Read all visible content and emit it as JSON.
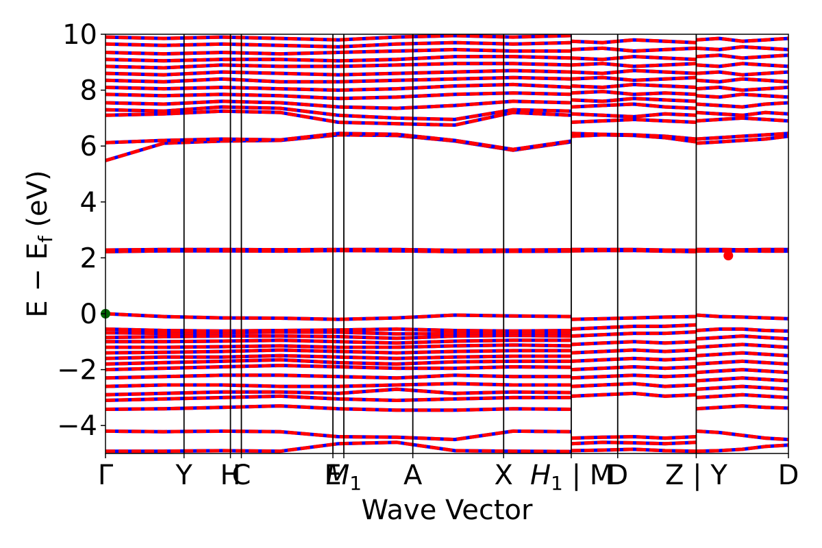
{
  "chart_data": {
    "type": "line",
    "title": "",
    "xlabel": "Wave Vector",
    "ylabel": "E − E",
    "ylabel_sub": "f",
    "ylabel_unit": "(eV)",
    "ylim": [
      -5,
      10
    ],
    "yticks": [
      -4,
      -2,
      0,
      2,
      4,
      6,
      8,
      10
    ],
    "ytick_labels": [
      "−4",
      "−2",
      "0",
      "2",
      "4",
      "6",
      "8",
      "10"
    ],
    "grid": false,
    "series_colors": {
      "spin_up": "#0000ff",
      "spin_down": "#ff0000",
      "vbm_marker": "#006400",
      "cbm_marker": "#ff0000"
    },
    "high_symmetry_points": [
      {
        "x": 0.0,
        "label": "Γ"
      },
      {
        "x": 0.115,
        "label": "Y"
      },
      {
        "x": 0.183,
        "label": "H"
      },
      {
        "x": 0.199,
        "label": "C"
      },
      {
        "x": 0.333,
        "label": "E"
      },
      {
        "x": 0.349,
        "label": "M",
        "sub": "1",
        "italic": true
      },
      {
        "x": 0.45,
        "label": "A"
      },
      {
        "x": 0.583,
        "label": "X"
      },
      {
        "x": 0.682,
        "label": "H",
        "sub": "1",
        "italic": true,
        "suffix": " | M"
      },
      {
        "x": 0.75,
        "label": "D"
      },
      {
        "x": 0.865,
        "label": "Z | Y"
      },
      {
        "x": 1.0,
        "label": "D"
      }
    ],
    "panels": [
      {
        "x0": 0.0,
        "x1": 0.682,
        "bands": [
          [
            -4.92,
            -4.92,
            -4.9,
            -4.92,
            -4.65,
            -4.6,
            -4.9,
            -4.92,
            -4.93
          ],
          [
            -4.2,
            -4.22,
            -4.2,
            -4.22,
            -4.4,
            -4.42,
            -4.5,
            -4.2,
            -4.22
          ],
          [
            -3.42,
            -3.4,
            -3.35,
            -3.3,
            -3.4,
            -3.45,
            -3.45,
            -3.4,
            -3.42
          ],
          [
            -3.1,
            -3.05,
            -3.0,
            -2.95,
            -3.05,
            -3.1,
            -3.05,
            -3.0,
            -3.0
          ],
          [
            -2.9,
            -2.85,
            -2.8,
            -2.8,
            -2.85,
            -2.7,
            -2.85,
            -2.8,
            -2.82
          ],
          [
            -2.6,
            -2.55,
            -2.55,
            -2.6,
            -2.6,
            -2.55,
            -2.5,
            -2.55,
            -2.55
          ],
          [
            -2.3,
            -2.25,
            -2.2,
            -2.2,
            -2.25,
            -2.3,
            -2.2,
            -2.25,
            -2.25
          ],
          [
            -2.0,
            -1.95,
            -1.9,
            -1.85,
            -1.9,
            -1.95,
            -1.95,
            -1.9,
            -1.92
          ],
          [
            -1.8,
            -1.75,
            -1.7,
            -1.65,
            -1.75,
            -1.8,
            -1.72,
            -1.7,
            -1.7
          ],
          [
            -1.6,
            -1.55,
            -1.55,
            -1.5,
            -1.55,
            -1.6,
            -1.55,
            -1.52,
            -1.52
          ],
          [
            -1.4,
            -1.38,
            -1.35,
            -1.3,
            -1.35,
            -1.4,
            -1.35,
            -1.32,
            -1.32
          ],
          [
            -1.2,
            -1.2,
            -1.18,
            -1.15,
            -1.2,
            -1.2,
            -1.15,
            -1.12,
            -1.15
          ],
          [
            -1.0,
            -1.0,
            -0.98,
            -0.95,
            -1.0,
            -1.05,
            -0.98,
            -0.95,
            -0.95
          ],
          [
            -0.85,
            -0.82,
            -0.8,
            -0.8,
            -0.82,
            -0.88,
            -0.8,
            -0.78,
            -0.8
          ],
          [
            -0.68,
            -0.7,
            -0.68,
            -0.66,
            -0.66,
            -0.72,
            -0.7,
            -0.68,
            -0.68
          ],
          [
            -0.55,
            -0.6,
            -0.62,
            -0.6,
            -0.58,
            -0.55,
            -0.6,
            -0.62,
            -0.6
          ],
          [
            0.0,
            -0.1,
            -0.15,
            -0.16,
            -0.2,
            -0.15,
            -0.05,
            -0.08,
            -0.1
          ],
          [
            2.22,
            2.25,
            2.25,
            2.24,
            2.26,
            2.25,
            2.22,
            2.23,
            2.24
          ],
          [
            2.28,
            2.3,
            2.3,
            2.29,
            2.3,
            2.3,
            2.27,
            2.28,
            2.29
          ],
          [
            5.48,
            6.1,
            6.18,
            6.2,
            6.4,
            6.38,
            6.18,
            5.85,
            6.15
          ],
          [
            6.12,
            6.2,
            6.25,
            6.22,
            6.45,
            6.42,
            6.2,
            5.88,
            6.18
          ],
          [
            7.1,
            7.15,
            7.25,
            7.2,
            6.85,
            6.8,
            6.75,
            7.2,
            7.1
          ],
          [
            7.3,
            7.25,
            7.4,
            7.35,
            7.1,
            7.0,
            6.95,
            7.3,
            7.25
          ],
          [
            7.55,
            7.5,
            7.6,
            7.55,
            7.4,
            7.35,
            7.45,
            7.6,
            7.55
          ],
          [
            7.85,
            7.8,
            7.85,
            7.8,
            7.7,
            7.75,
            7.85,
            7.9,
            7.85
          ],
          [
            8.1,
            8.05,
            8.1,
            8.05,
            8.0,
            8.05,
            8.15,
            8.2,
            8.1
          ],
          [
            8.35,
            8.3,
            8.4,
            8.3,
            8.3,
            8.35,
            8.4,
            8.45,
            8.4
          ],
          [
            8.6,
            8.55,
            8.65,
            8.6,
            8.55,
            8.6,
            8.65,
            8.7,
            8.65
          ],
          [
            8.85,
            8.8,
            8.9,
            8.85,
            8.85,
            8.9,
            8.95,
            8.95,
            8.9
          ],
          [
            9.1,
            9.05,
            9.1,
            9.1,
            9.05,
            9.1,
            9.2,
            9.2,
            9.15
          ],
          [
            9.35,
            9.3,
            9.35,
            9.3,
            9.35,
            9.4,
            9.45,
            9.4,
            9.4
          ],
          [
            9.65,
            9.6,
            9.65,
            9.6,
            9.55,
            9.65,
            9.7,
            9.65,
            9.7
          ],
          [
            9.9,
            9.85,
            9.9,
            9.85,
            9.8,
            9.9,
            9.95,
            9.9,
            9.95
          ]
        ]
      },
      {
        "x0": 0.682,
        "x1": 0.865,
        "bands": [
          [
            -4.9,
            -4.88,
            -4.85,
            -4.9,
            -4.92
          ],
          [
            -4.65,
            -4.6,
            -4.62,
            -4.65,
            -4.6
          ],
          [
            -4.45,
            -4.42,
            -4.4,
            -4.45,
            -4.4
          ],
          [
            -2.95,
            -2.9,
            -2.85,
            -2.95,
            -2.9
          ],
          [
            -2.6,
            -2.55,
            -2.5,
            -2.6,
            -2.55
          ],
          [
            -2.3,
            -2.25,
            -2.2,
            -2.25,
            -2.2
          ],
          [
            -2.0,
            -1.95,
            -1.9,
            -1.95,
            -1.9
          ],
          [
            -1.7,
            -1.65,
            -1.6,
            -1.65,
            -1.6
          ],
          [
            -1.4,
            -1.35,
            -1.3,
            -1.35,
            -1.3
          ],
          [
            -1.1,
            -1.05,
            -1.0,
            -1.05,
            -1.0
          ],
          [
            -0.8,
            -0.75,
            -0.7,
            -0.7,
            -0.65
          ],
          [
            -0.55,
            -0.5,
            -0.45,
            -0.45,
            -0.4
          ],
          [
            -0.2,
            -0.18,
            -0.15,
            -0.12,
            -0.1
          ],
          [
            2.25,
            2.26,
            2.26,
            2.24,
            2.22
          ],
          [
            2.3,
            2.3,
            2.3,
            2.28,
            2.27
          ],
          [
            6.35,
            6.4,
            6.38,
            6.3,
            6.15
          ],
          [
            6.45,
            6.42,
            6.4,
            6.35,
            6.25
          ],
          [
            6.85,
            6.9,
            6.95,
            6.9,
            6.85
          ],
          [
            7.15,
            7.1,
            7.05,
            7.15,
            7.1
          ],
          [
            7.4,
            7.45,
            7.5,
            7.4,
            7.35
          ],
          [
            7.65,
            7.6,
            7.7,
            7.65,
            7.6
          ],
          [
            7.9,
            7.95,
            7.85,
            7.9,
            7.85
          ],
          [
            8.15,
            8.1,
            8.2,
            8.15,
            8.1
          ],
          [
            8.4,
            8.45,
            8.35,
            8.4,
            8.45
          ],
          [
            8.65,
            8.6,
            8.7,
            8.65,
            8.6
          ],
          [
            8.9,
            8.95,
            8.85,
            8.9,
            8.95
          ],
          [
            9.15,
            9.1,
            9.2,
            9.15,
            9.1
          ],
          [
            9.45,
            9.5,
            9.4,
            9.45,
            9.5
          ],
          [
            9.75,
            9.7,
            9.8,
            9.75,
            9.7
          ]
        ]
      },
      {
        "x0": 0.865,
        "x1": 1.0,
        "bands": [
          [
            -4.92,
            -4.9,
            -4.85,
            -4.75,
            -4.7
          ],
          [
            -4.2,
            -4.25,
            -4.35,
            -4.45,
            -4.5
          ],
          [
            -3.4,
            -3.35,
            -3.3,
            -3.35,
            -3.38
          ],
          [
            -3.0,
            -2.95,
            -2.9,
            -2.95,
            -3.0
          ],
          [
            -2.7,
            -2.65,
            -2.6,
            -2.65,
            -2.7
          ],
          [
            -2.4,
            -2.35,
            -2.3,
            -2.35,
            -2.4
          ],
          [
            -2.1,
            -2.05,
            -2.0,
            -2.05,
            -2.1
          ],
          [
            -1.8,
            -1.75,
            -1.7,
            -1.75,
            -1.8
          ],
          [
            -1.5,
            -1.45,
            -1.4,
            -1.45,
            -1.5
          ],
          [
            -1.2,
            -1.15,
            -1.1,
            -1.15,
            -1.2
          ],
          [
            -0.9,
            -0.85,
            -0.8,
            -0.85,
            -0.9
          ],
          [
            -0.6,
            -0.55,
            -0.55,
            -0.6,
            -0.62
          ],
          [
            -0.05,
            -0.1,
            -0.12,
            -0.15,
            -0.18
          ],
          [
            2.24,
            2.25,
            2.25,
            2.24,
            2.24
          ],
          [
            2.3,
            2.3,
            2.29,
            2.3,
            2.3
          ],
          [
            6.1,
            6.15,
            6.2,
            6.25,
            6.35
          ],
          [
            6.25,
            6.3,
            6.35,
            6.4,
            6.45
          ],
          [
            6.9,
            6.95,
            7.0,
            6.95,
            6.9
          ],
          [
            7.2,
            7.15,
            7.1,
            7.2,
            7.15
          ],
          [
            7.5,
            7.45,
            7.4,
            7.5,
            7.55
          ],
          [
            7.8,
            7.75,
            7.85,
            7.8,
            7.75
          ],
          [
            8.05,
            8.1,
            8.0,
            8.05,
            8.1
          ],
          [
            8.35,
            8.3,
            8.4,
            8.35,
            8.3
          ],
          [
            8.6,
            8.65,
            8.55,
            8.6,
            8.65
          ],
          [
            8.9,
            8.85,
            8.95,
            8.9,
            8.85
          ],
          [
            9.2,
            9.25,
            9.15,
            9.2,
            9.25
          ],
          [
            9.5,
            9.45,
            9.55,
            9.5,
            9.45
          ],
          [
            9.8,
            9.85,
            9.75,
            9.8,
            9.85
          ]
        ]
      }
    ],
    "markers": [
      {
        "x": 0.0,
        "y": 0.0,
        "color": "#006400",
        "name": "vbm-marker"
      },
      {
        "x": 0.912,
        "y": 2.08,
        "color": "#ff0000",
        "name": "cbm-marker"
      }
    ]
  }
}
